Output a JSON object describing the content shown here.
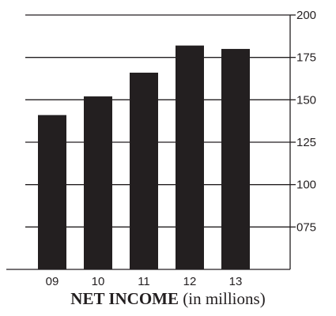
{
  "chart_data": {
    "type": "bar",
    "categories": [
      "09",
      "10",
      "11",
      "12",
      "13"
    ],
    "values": [
      141,
      152,
      166,
      182,
      180
    ],
    "ylim": [
      50,
      200
    ],
    "y_ticks": [
      "075",
      "100",
      "125",
      "150",
      "175",
      "200"
    ],
    "y_axis_side": "right",
    "grid": true,
    "bar_color": "#231f20",
    "title_bold": "NET INCOME",
    "title_rest": "(in millions)"
  }
}
